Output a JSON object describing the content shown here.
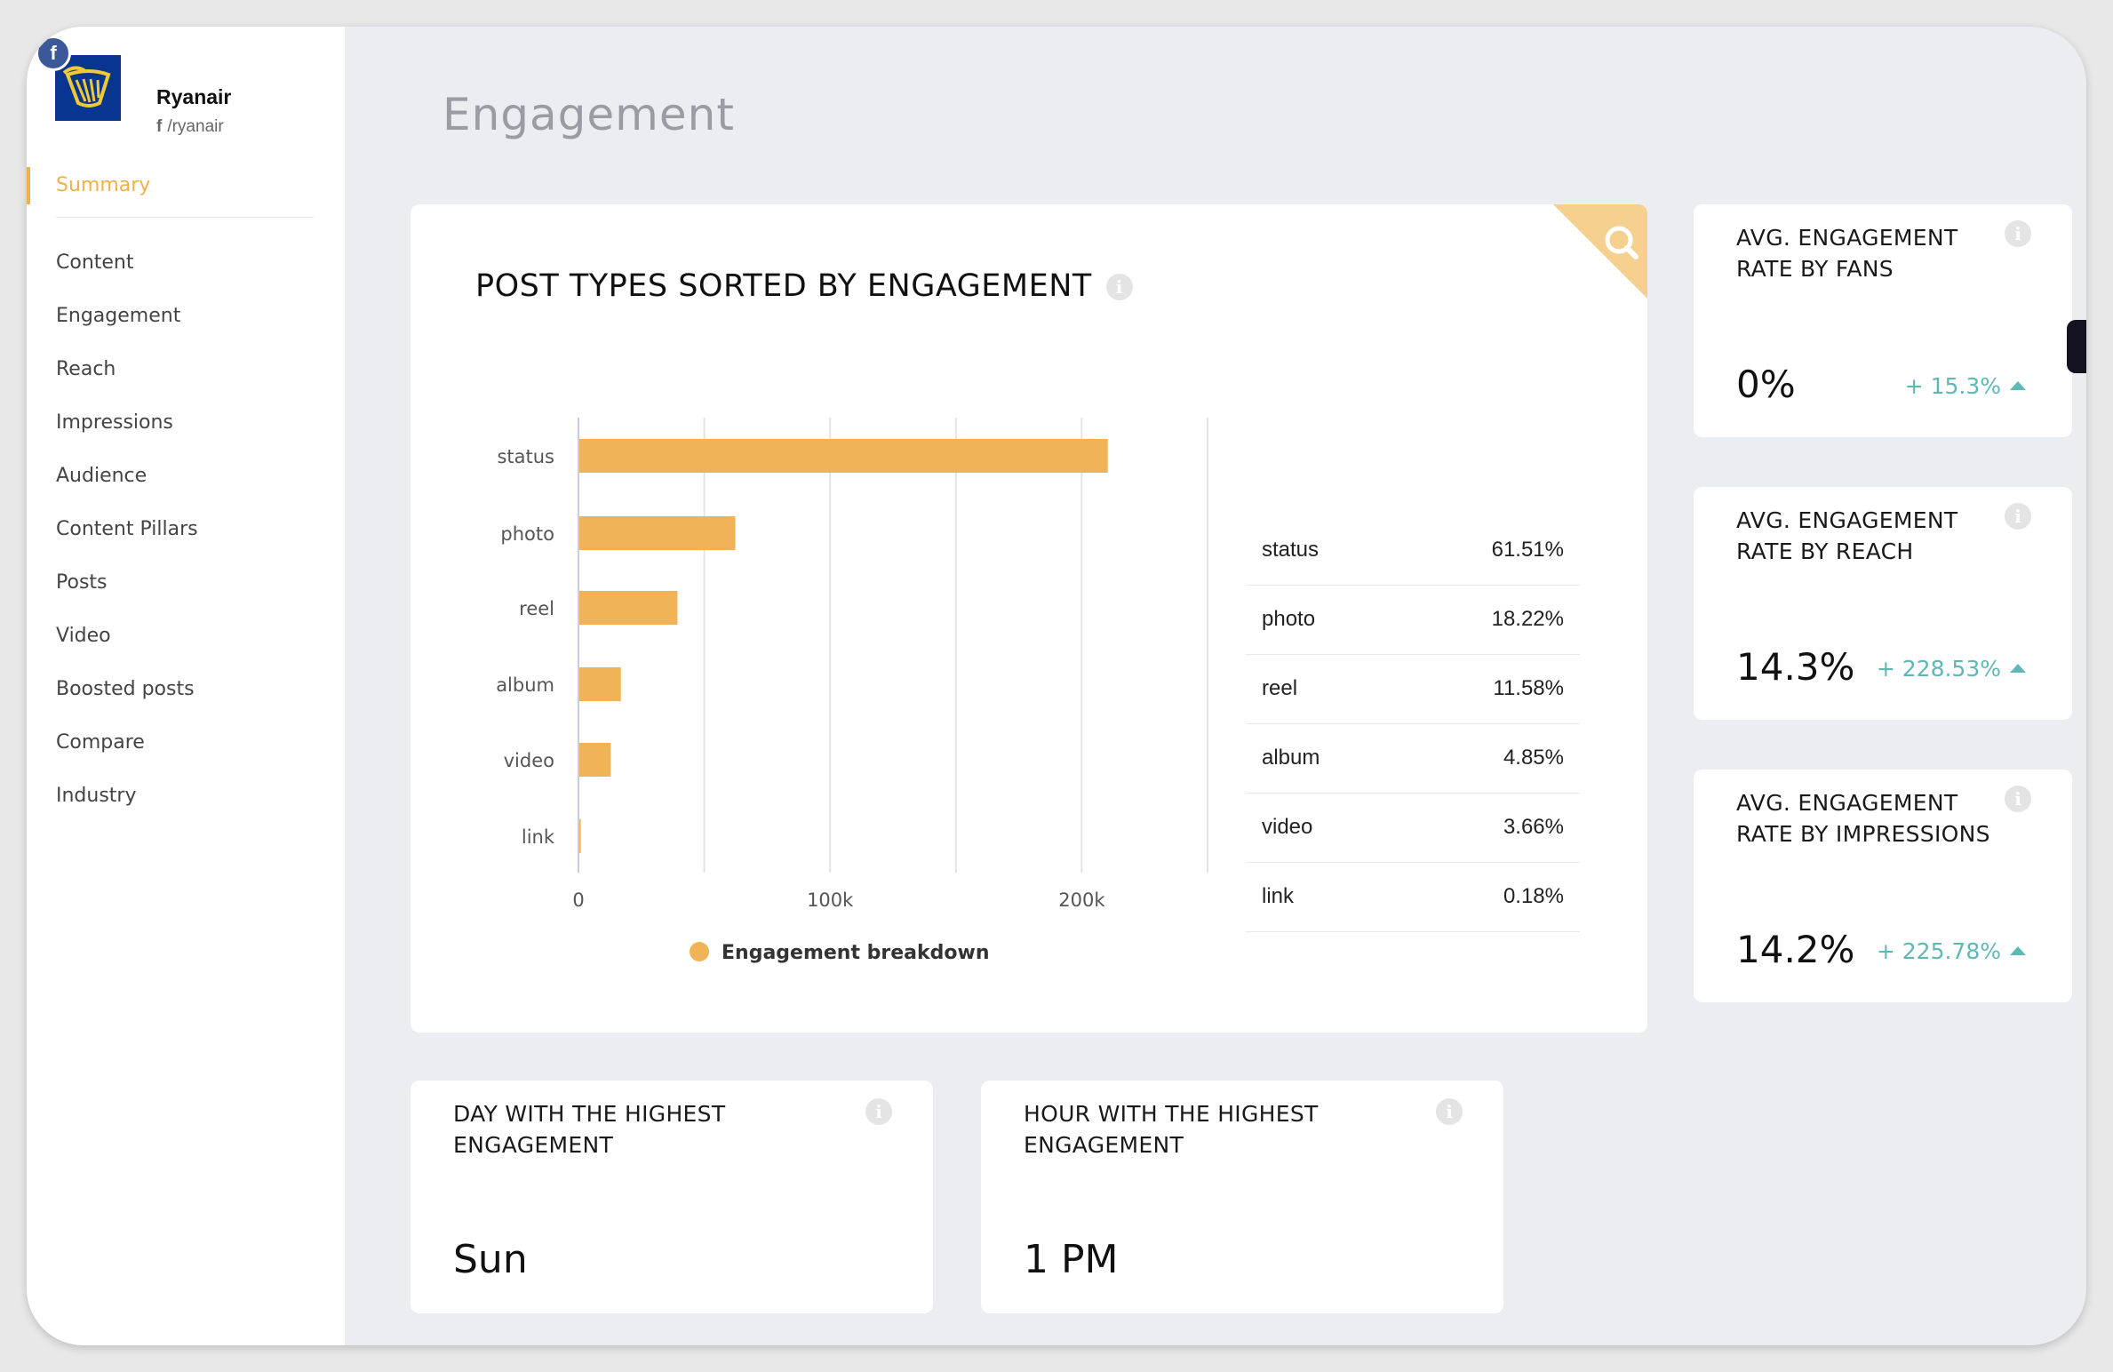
{
  "account": {
    "name": "Ryanair",
    "handle": "/ryanair",
    "network_badge": "f",
    "logo_icon": "ryanair-harp-icon"
  },
  "sidebar": {
    "active": "Summary",
    "items": [
      {
        "label": "Content"
      },
      {
        "label": "Engagement"
      },
      {
        "label": "Reach"
      },
      {
        "label": "Impressions"
      },
      {
        "label": "Audience"
      },
      {
        "label": "Content Pillars"
      },
      {
        "label": "Posts"
      },
      {
        "label": "Video"
      },
      {
        "label": "Boosted posts"
      },
      {
        "label": "Compare"
      },
      {
        "label": "Industry"
      }
    ]
  },
  "page": {
    "title": "Engagement"
  },
  "main_card": {
    "title": "POST TYPES SORTED BY ENGAGEMENT",
    "info_icon": "i",
    "corner_icon": "search-icon",
    "legend": "Engagement breakdown",
    "table": [
      {
        "type": "status",
        "pct": "61.51%"
      },
      {
        "type": "photo",
        "pct": "18.22%"
      },
      {
        "type": "reel",
        "pct": "11.58%"
      },
      {
        "type": "album",
        "pct": "4.85%"
      },
      {
        "type": "video",
        "pct": "3.66%"
      },
      {
        "type": "link",
        "pct": "0.18%"
      }
    ]
  },
  "chart_data": {
    "type": "bar",
    "orientation": "horizontal",
    "categories": [
      "status",
      "photo",
      "reel",
      "album",
      "video",
      "link"
    ],
    "series": [
      {
        "name": "Engagement breakdown",
        "values": [
          210000,
          62000,
          39000,
          16500,
          12500,
          600
        ]
      }
    ],
    "xlim": [
      0,
      250000
    ],
    "xticks": [
      0,
      50000,
      100000,
      150000,
      200000,
      250000
    ],
    "xtick_labels": [
      "0",
      "",
      "100k",
      "",
      "200k",
      ""
    ],
    "grid": true,
    "legend_position": "bottom",
    "bar_color": "#f0b357"
  },
  "stats": [
    {
      "label": "AVG. ENGAGEMENT RATE BY FANS",
      "value": "0%",
      "change": "+ 15.3%"
    },
    {
      "label": "AVG. ENGAGEMENT RATE BY REACH",
      "value": "14.3%",
      "change": "+ 228.53%"
    },
    {
      "label": "AVG. ENGAGEMENT RATE BY IMPRESSIONS",
      "value": "14.2%",
      "change": "+ 225.78%"
    }
  ],
  "highlights": [
    {
      "label": "DAY WITH THE HIGHEST ENGAGEMENT",
      "value": "Sun"
    },
    {
      "label": "HOUR WITH THE HIGHEST ENGAGEMENT",
      "value": "1 PM"
    }
  ],
  "colors": {
    "accent": "#f0b04a",
    "bar": "#f0b357",
    "positive_change": "#5fb8b4",
    "background": "#ebedf1"
  }
}
